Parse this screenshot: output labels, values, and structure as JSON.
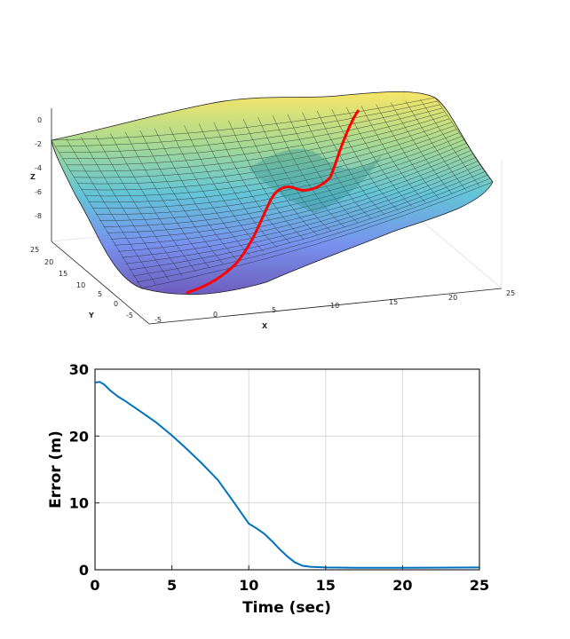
{
  "chart_data": [
    {
      "type": "surface",
      "xlabel": "X",
      "ylabel": "Y",
      "zlabel": "Z",
      "xlim": [
        -5,
        25
      ],
      "ylim": [
        -5,
        25
      ],
      "zlim": [
        -9,
        0
      ],
      "xticks": [
        "-5",
        "0",
        "5",
        "10",
        "15",
        "20",
        "25"
      ],
      "yticks": [
        "-5",
        "0",
        "5",
        "10",
        "15",
        "20",
        "25"
      ],
      "zticks": [
        "0",
        "-2",
        "-4",
        "-6",
        "-8"
      ],
      "grid": true,
      "colormap": "parula",
      "path_color": "#ff0000",
      "path": {
        "x": [
          -2,
          0,
          2,
          4,
          5,
          6,
          7,
          8,
          9,
          10,
          11,
          11.5,
          12,
          13,
          14,
          15
        ],
        "y": [
          -2,
          -1,
          0,
          1.5,
          3,
          5,
          7,
          9,
          11,
          12,
          13,
          14,
          15,
          17,
          19,
          21
        ],
        "z": [
          -8.9,
          -8.7,
          -8.3,
          -7.5,
          -7.0,
          -6.4,
          -5.8,
          -5.0,
          -4.6,
          -4.6,
          -4.9,
          -5.0,
          -4.6,
          -3.4,
          -2.0,
          -0.8
        ]
      }
    },
    {
      "type": "line",
      "xlabel": "Time (sec)",
      "ylabel": "Error (m)",
      "xlim": [
        0,
        25
      ],
      "ylim": [
        0,
        30
      ],
      "xticks": [
        "0",
        "5",
        "10",
        "15",
        "20",
        "25"
      ],
      "yticks": [
        "0",
        "10",
        "20",
        "30"
      ],
      "grid": true,
      "line_color": "#0072bd",
      "x": [
        0,
        0.3,
        0.6,
        1.0,
        1.5,
        2,
        3,
        4,
        5,
        6,
        7,
        8,
        9,
        10,
        10.5,
        11,
        11.5,
        12,
        12.5,
        13,
        13.5,
        14,
        15,
        17,
        20,
        22,
        25
      ],
      "y": [
        28.0,
        28.1,
        27.7,
        26.8,
        25.9,
        25.2,
        23.6,
        22.0,
        20.1,
        18.0,
        15.8,
        13.4,
        10.2,
        6.9,
        6.2,
        5.4,
        4.3,
        3.1,
        2.0,
        1.1,
        0.6,
        0.45,
        0.35,
        0.3,
        0.3,
        0.32,
        0.35
      ]
    }
  ]
}
